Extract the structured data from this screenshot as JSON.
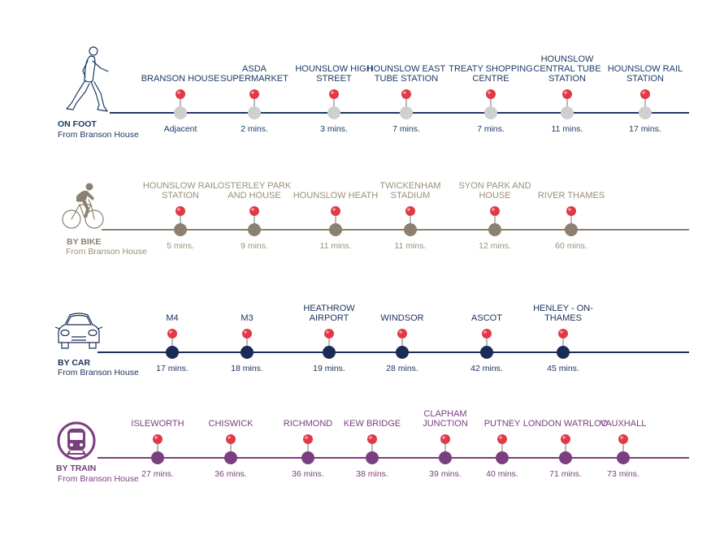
{
  "colors": {
    "foot_text": "#1c3a66",
    "foot_line": "#1c3a66",
    "foot_dot": "#cfcfcf",
    "bike_text": "#9a8f78",
    "bike_line": "#8c8170",
    "bike_dot": "#8c8170",
    "car_text": "#1c2f5a",
    "car_line": "#1c2f5a",
    "car_dot": "#182c56",
    "train_text": "#7a3f7f",
    "train_line": "#7a3f7f",
    "train_dot": "#7a3f7f",
    "pin": "#e03a46"
  },
  "foot": {
    "icon": "walking-person-icon",
    "title": "ON FOOT",
    "subtitle": "From Branson House",
    "stops": [
      {
        "name": "BRANSON HOUSE",
        "time": "Adjacent"
      },
      {
        "name": "ASDA SUPERMARKET",
        "time": "2 mins."
      },
      {
        "name": "HOUNSLOW HIGH STREET",
        "time": "3 mins."
      },
      {
        "name": "HOUNSLOW EAST TUBE STATION",
        "time": "7 mins."
      },
      {
        "name": "TREATY SHOPPING CENTRE",
        "time": "7 mins."
      },
      {
        "name": "HOUNSLOW CENTRAL TUBE STATION",
        "time": "11 mins."
      },
      {
        "name": "HOUNSLOW RAIL STATION",
        "time": "17 mins."
      }
    ]
  },
  "bike": {
    "icon": "cyclist-icon",
    "title": "BY BIKE",
    "subtitle": "From Branson House",
    "stops": [
      {
        "name": "HOUNSLOW RAIL STATION",
        "time": "5 mins."
      },
      {
        "name": "OSTERLEY PARK AND HOUSE",
        "time": "9 mins."
      },
      {
        "name": "HOUNSLOW HEATH",
        "time": "11 mins."
      },
      {
        "name": "TWICKENHAM STADIUM",
        "time": "11 mins."
      },
      {
        "name": "SYON PARK AND HOUSE",
        "time": "12 mins."
      },
      {
        "name": "RIVER THAMES",
        "time": "60 mins."
      }
    ]
  },
  "car": {
    "icon": "car-icon",
    "title": "BY CAR",
    "subtitle": "From Branson House",
    "stops": [
      {
        "name": "M4",
        "time": "17 mins."
      },
      {
        "name": "M3",
        "time": "18 mins."
      },
      {
        "name": "HEATHROW AIRPORT",
        "time": "19 mins."
      },
      {
        "name": "WINDSOR",
        "time": "28 mins."
      },
      {
        "name": "ASCOT",
        "time": "42 mins."
      },
      {
        "name": "HENLEY - ON-THAMES",
        "time": "45 mins."
      }
    ]
  },
  "train": {
    "icon": "train-icon",
    "title": "BY TRAIN",
    "subtitle": "From Branson House",
    "stops": [
      {
        "name": "ISLEWORTH",
        "time": "27 mins."
      },
      {
        "name": "CHISWICK",
        "time": "36 mins."
      },
      {
        "name": "RICHMOND",
        "time": "36 mins."
      },
      {
        "name": "KEW BRIDGE",
        "time": "38 mins."
      },
      {
        "name": "CLAPHAM JUNCTION",
        "time": "39 mins."
      },
      {
        "name": "PUTNEY",
        "time": "40 mins."
      },
      {
        "name": "LONDON WATRLOO",
        "time": "71 mins."
      },
      {
        "name": "VAUXHALL",
        "time": "73 mins."
      }
    ]
  }
}
